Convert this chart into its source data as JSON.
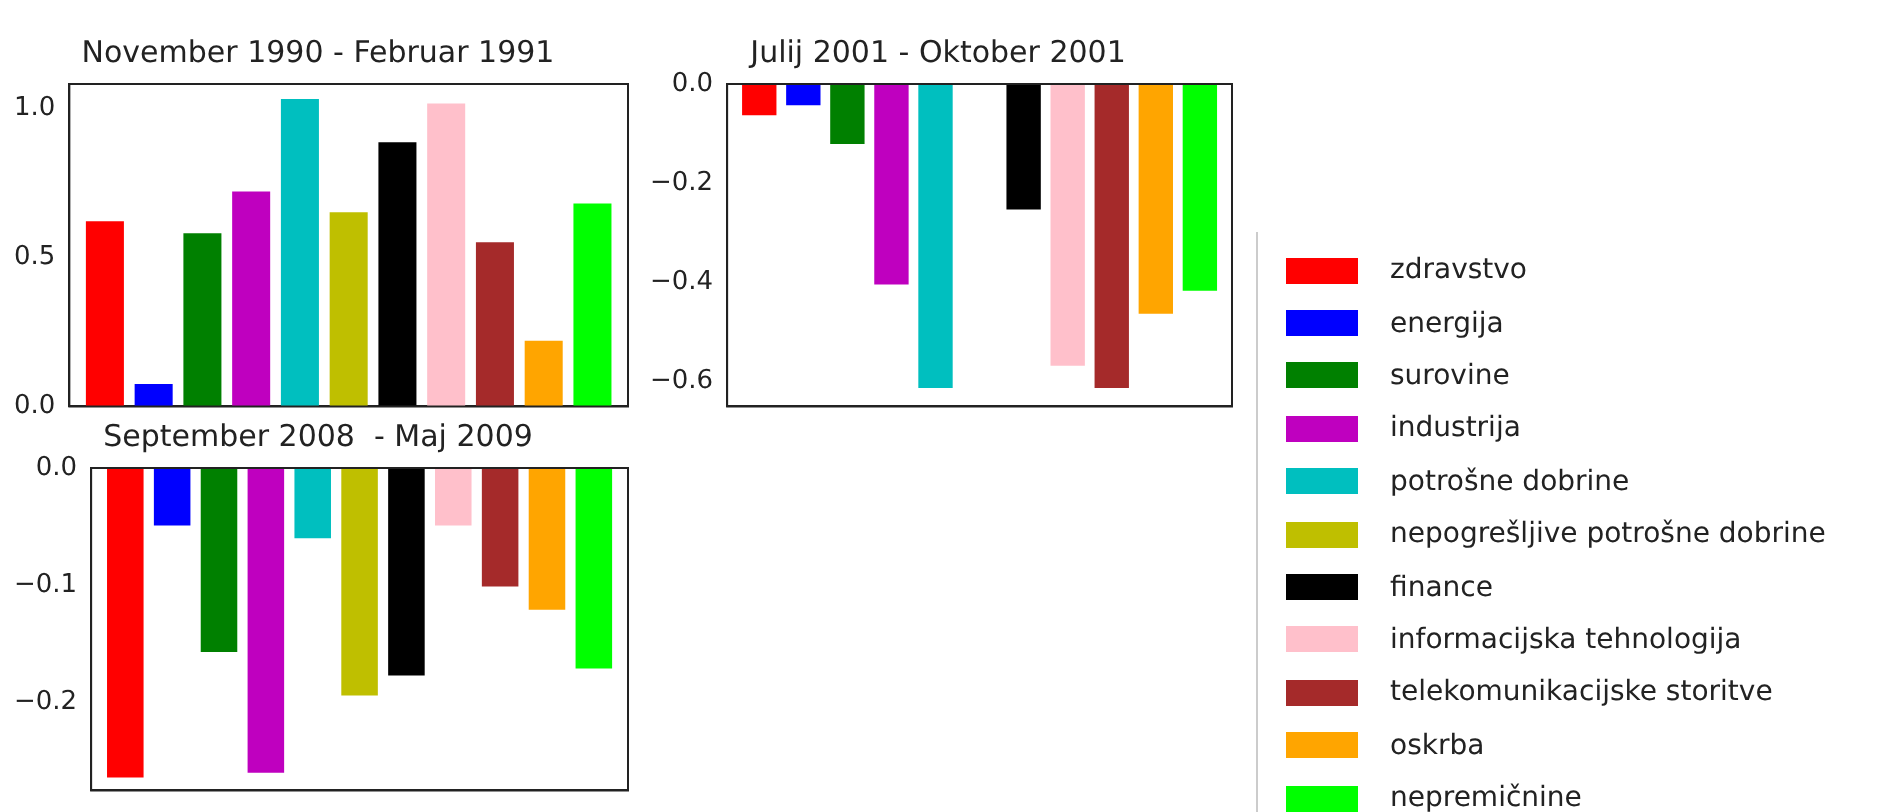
{
  "chart_data": [
    {
      "type": "bar",
      "title": "November 1990 - Februar 1991",
      "categories": [
        null
      ],
      "legend": "right",
      "ylim": [
        0,
        1.08
      ],
      "yticks": [
        {
          "value": 0,
          "label": "0.0"
        },
        {
          "value": 0.5,
          "label": "0.5"
        },
        {
          "value": 1,
          "label": "1.0"
        }
      ],
      "grid": false,
      "series": [
        {
          "name": "zdravstvo",
          "color": "#ff0000",
          "values": [
            0.62
          ]
        },
        {
          "name": "energija",
          "color": "#0000ff",
          "values": [
            0.075
          ]
        },
        {
          "name": "surovine",
          "color": "#008000",
          "values": [
            0.58
          ]
        },
        {
          "name": "industrija",
          "color": "#bf00bf",
          "values": [
            0.72
          ]
        },
        {
          "name": "potrošne dobrine",
          "color": "#00bfbf",
          "values": [
            1.03
          ]
        },
        {
          "name": "nepogrešljive potrošne dobrine",
          "color": "#bfbf00",
          "values": [
            0.65
          ]
        },
        {
          "name": "finance",
          "color": "#000000",
          "values": [
            0.885
          ]
        },
        {
          "name": "informacijska tehnologija",
          "color": "#ffc0cb",
          "values": [
            1.015
          ]
        },
        {
          "name": "telekomunikacijske storitve",
          "color": "#a52a2a",
          "values": [
            0.55
          ]
        },
        {
          "name": "oskrba",
          "color": "#ffa500",
          "values": [
            0.22
          ]
        },
        {
          "name": "nepremičnine",
          "color": "#00ff00",
          "values": [
            0.68
          ]
        }
      ]
    },
    {
      "type": "bar",
      "title": "Julij 2001 - Oktober 2001",
      "categories": [
        null
      ],
      "ylim": [
        -0.65,
        0
      ],
      "yticks": [
        {
          "value": 0,
          "label": "0.0"
        },
        {
          "value": -0.2,
          "label": "−0.2"
        },
        {
          "value": -0.4,
          "label": "−0.4"
        },
        {
          "value": -0.6,
          "label": "−0.6"
        }
      ],
      "grid": false,
      "series": [
        {
          "color": "#ff0000",
          "values": [
            -0.063
          ]
        },
        {
          "color": "#0000ff",
          "values": [
            -0.043
          ]
        },
        {
          "color": "#008000",
          "values": [
            -0.121
          ]
        },
        {
          "color": "#bf00bf",
          "values": [
            -0.404
          ]
        },
        {
          "color": "#00bfbf",
          "values": [
            -0.613
          ]
        },
        {
          "color": "#bfbf00",
          "values": [
            0
          ]
        },
        {
          "color": "#000000",
          "values": [
            -0.253
          ]
        },
        {
          "color": "#ffc0cb",
          "values": [
            -0.568
          ]
        },
        {
          "color": "#a52a2a",
          "values": [
            -0.613
          ]
        },
        {
          "color": "#ffa500",
          "values": [
            -0.463
          ]
        },
        {
          "color": "#00ff00",
          "values": [
            -0.417
          ]
        }
      ]
    },
    {
      "type": "bar",
      "title": "September 2008  - Maj 2009",
      "categories": [
        null
      ],
      "ylim": [
        -0.275,
        0
      ],
      "yticks": [
        {
          "value": 0,
          "label": "0.0"
        },
        {
          "value": -0.1,
          "label": "−0.1"
        },
        {
          "value": -0.2,
          "label": "−0.2"
        }
      ],
      "grid": false,
      "series": [
        {
          "color": "#ff0000",
          "values": [
            -0.264
          ]
        },
        {
          "color": "#0000ff",
          "values": [
            -0.049
          ]
        },
        {
          "color": "#008000",
          "values": [
            -0.157
          ]
        },
        {
          "color": "#bf00bf",
          "values": [
            -0.26
          ]
        },
        {
          "color": "#00bfbf",
          "values": [
            -0.06
          ]
        },
        {
          "color": "#bfbf00",
          "values": [
            -0.194
          ]
        },
        {
          "color": "#000000",
          "values": [
            -0.177
          ]
        },
        {
          "color": "#ffc0cb",
          "values": [
            -0.049
          ]
        },
        {
          "color": "#a52a2a",
          "values": [
            -0.101
          ]
        },
        {
          "color": "#ffa500",
          "values": [
            -0.121
          ]
        },
        {
          "color": "#00ff00",
          "values": [
            -0.171
          ]
        }
      ]
    }
  ]
}
